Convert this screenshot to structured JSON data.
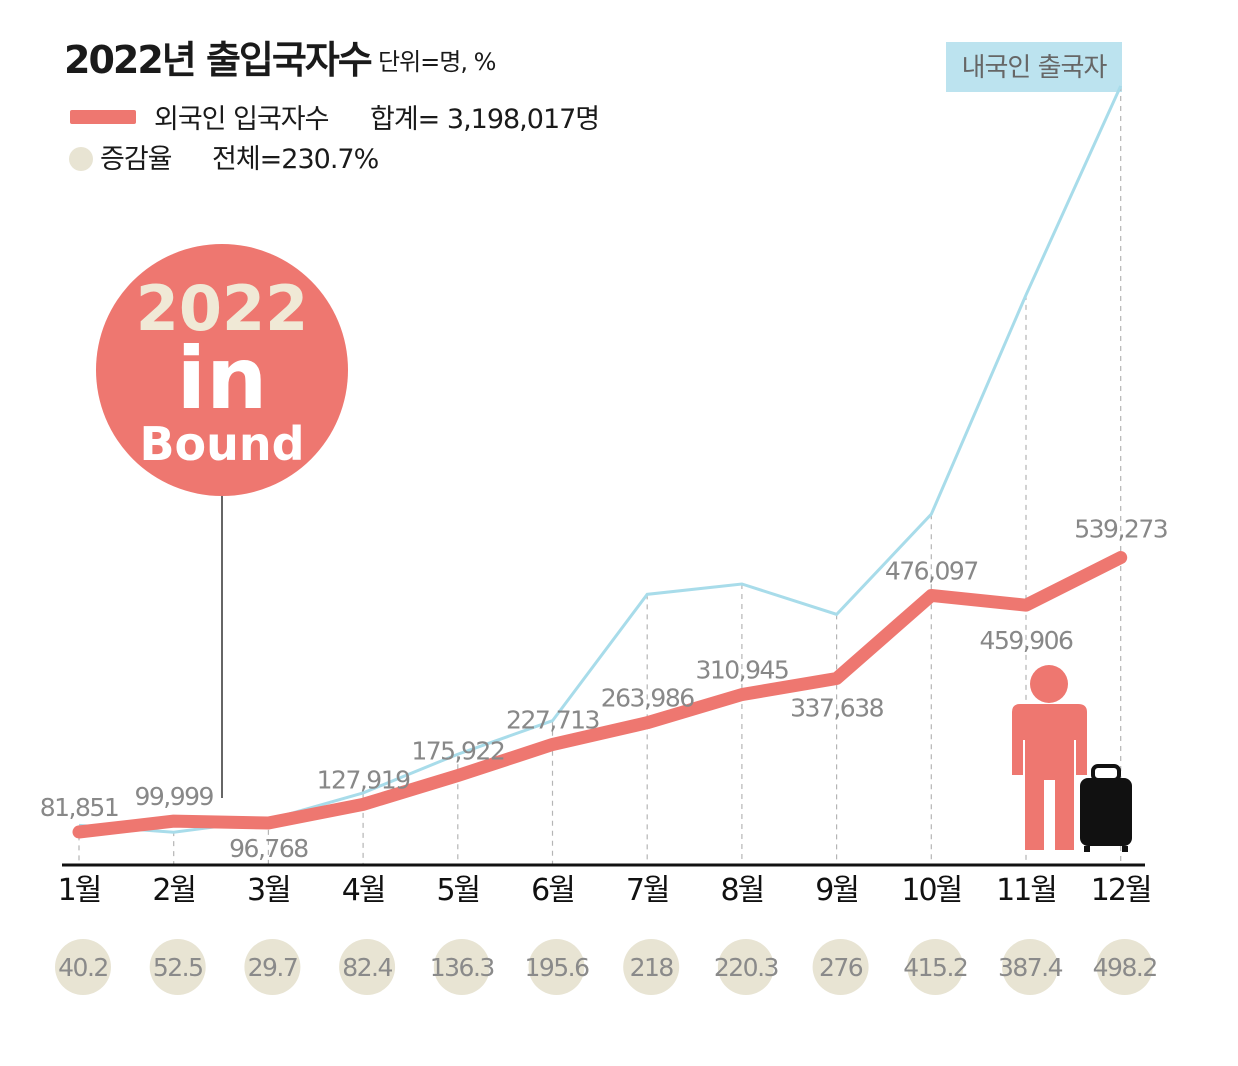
{
  "header": {
    "title": "2022년 출입국자수",
    "unit": "단위=명, %"
  },
  "legend": {
    "foreign_label": "외국인 입국자수",
    "foreign_total": "합계=  3,198,017명",
    "rate_label": "증감율",
    "rate_total": "전체=230.7%"
  },
  "badge": {
    "line1": "2022",
    "line2": "in",
    "line3": "Bound"
  },
  "colors": {
    "foreign_line": "#ee7770",
    "domestic_line": "#a8dcea",
    "rate_circle": "#e8e4d3",
    "badge_bg": "#ee7770",
    "badge_text_top": "#f0e9d6",
    "label_bg": "#bce3ef"
  },
  "chart_data": {
    "type": "line",
    "categories": [
      "1월",
      "2월",
      "3월",
      "4월",
      "5월",
      "6월",
      "7월",
      "8월",
      "9월",
      "10월",
      "11월",
      "12월"
    ],
    "series": [
      {
        "name": "외국인 입국자수",
        "values": [
          81851,
          99999,
          96768,
          127919,
          175922,
          227713,
          263986,
          310945,
          337638,
          476097,
          459906,
          539273
        ],
        "labels": [
          "81,851",
          "99,999",
          "96,768",
          "127,919",
          "175,922",
          "227,713",
          "263,986",
          "310,945",
          "337,638",
          "476,097",
          "459,906",
          "539,273"
        ]
      },
      {
        "name": "내국인 출국자",
        "values": [
          109000,
          89000,
          125000,
          203000,
          315000,
          412000,
          778000,
          808000,
          720000,
          1010000,
          1645000,
          2250000
        ]
      }
    ],
    "rates": {
      "name": "증감율",
      "values": [
        40.2,
        52.5,
        29.7,
        82.4,
        136.3,
        195.6,
        218,
        220.3,
        276,
        415.2,
        387.4,
        498.2
      ],
      "labels": [
        "40.2",
        "52.5",
        "29.7",
        "82.4",
        "136.3",
        "195.6",
        "218",
        "220.3",
        "276",
        "415.2",
        "387.4",
        "498.2"
      ]
    },
    "ylim": [
      0,
      2250000
    ],
    "grid": "vertical-dashed"
  }
}
